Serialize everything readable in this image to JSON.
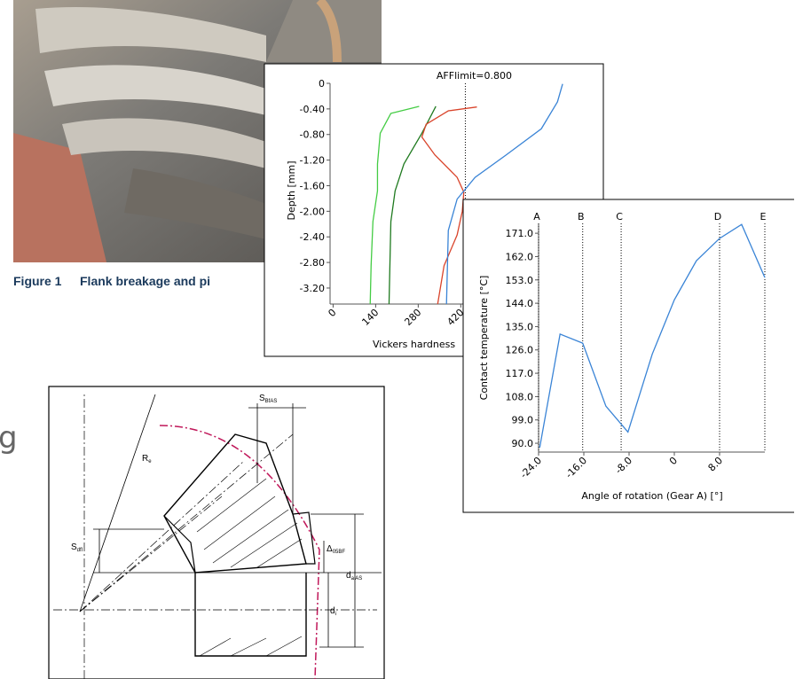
{
  "chart_data": [
    {
      "type": "line",
      "ylabel": "Depth [mm]",
      "xlabel": "Vickers hardness",
      "xlim": [
        -10,
        889
      ],
      "ylim": [
        -3.45,
        0
      ],
      "xticks": [
        0,
        140,
        280,
        420
      ],
      "yticks": [
        0,
        {
          "value": -0.4,
          "label": "-0.40"
        },
        {
          "value": -0.8,
          "label": "-0.80"
        },
        {
          "value": -1.2,
          "label": "-1.20"
        },
        {
          "value": -1.6,
          "label": "-1.60"
        },
        {
          "value": -2.0,
          "label": "-2.00"
        },
        {
          "value": -2.4,
          "label": "-2.40"
        },
        {
          "value": -2.8,
          "label": "-2.80"
        },
        {
          "value": -3.2,
          "label": "-3.20"
        }
      ],
      "ref_line": {
        "label": "AFFlimit=0.800",
        "x": 435
      },
      "series": [
        {
          "color": "#44cc44",
          "x": [
            283,
            190,
            155,
            146,
            146,
            131,
            125,
            122
          ],
          "values": [
            -0.36,
            -0.47,
            -0.78,
            -1.26,
            -1.68,
            -2.16,
            -2.85,
            -3.45
          ]
        },
        {
          "color": "#1f7a1f",
          "x": [
            338,
            292,
            233,
            204,
            190,
            184
          ],
          "values": [
            -0.36,
            -0.78,
            -1.26,
            -1.68,
            -2.16,
            -3.45
          ]
        },
        {
          "color": "#d9442b",
          "x": [
            473,
            379,
            306,
            292,
            335,
            408,
            430,
            425,
            408,
            365,
            344
          ],
          "values": [
            -0.37,
            -0.43,
            -0.64,
            -0.84,
            -1.12,
            -1.47,
            -1.7,
            -2.0,
            -2.37,
            -2.85,
            -3.45
          ]
        },
        {
          "color": "#3a84d6",
          "x": [
            755,
            738,
            685,
            569,
            467,
            408,
            379,
            373
          ],
          "values": [
            -0.01,
            -0.29,
            -0.71,
            -1.12,
            -1.47,
            -1.81,
            -2.3,
            -3.45
          ]
        }
      ]
    },
    {
      "type": "line",
      "ylabel": "Contact temperature [°C]",
      "xlabel": "Angle of rotation (Gear A) [°]",
      "xlim": [
        -24,
        16
      ],
      "ylim": [
        86.6,
        174.8
      ],
      "xticks": [
        {
          "value": -24,
          "label": "-24.0"
        },
        {
          "value": -16,
          "label": "-16.0"
        },
        {
          "value": -8,
          "label": "-8.0"
        },
        0,
        {
          "value": 8,
          "label": "8.0"
        }
      ],
      "yticks": [
        {
          "value": 90,
          "label": "90.0"
        },
        {
          "value": 99,
          "label": "99.0"
        },
        {
          "value": 108,
          "label": "108.0"
        },
        {
          "value": 117,
          "label": "117.0"
        },
        {
          "value": 126,
          "label": "126.0"
        },
        {
          "value": 135,
          "label": "135.0"
        },
        {
          "value": 144,
          "label": "144.0"
        },
        {
          "value": 153,
          "label": "153.0"
        },
        {
          "value": 162,
          "label": "162.0"
        },
        {
          "value": 171,
          "label": "171.0"
        }
      ],
      "markers": [
        {
          "label": "A",
          "x": -24
        },
        {
          "label": "B",
          "x": -16.2
        },
        {
          "label": "C",
          "x": -9.4
        },
        {
          "label": "D",
          "x": 8
        },
        {
          "label": "E",
          "x": 16
        }
      ],
      "series": [
        {
          "color": "#3a84d6",
          "x": [
            -23.8,
            -20.2,
            -16.2,
            -12.1,
            -8.2,
            -3.9,
            0,
            3.9,
            8,
            11.9,
            16
          ],
          "values": [
            88.3,
            132.1,
            128.6,
            104.3,
            94.3,
            124.4,
            145.3,
            160.4,
            169,
            174.4,
            153.9
          ]
        }
      ]
    }
  ],
  "figure_caption": {
    "number": "Figure 1",
    "text": "Flank breakage and pi"
  },
  "drawing": {
    "s_bfas": {
      "main": "S",
      "sub": "BfAS"
    },
    "r_e": {
      "main": "R",
      "sub": "e"
    },
    "s_dfl": {
      "main": "S",
      "sub": "dfl"
    },
    "delta": {
      "main": "Δ",
      "sub": "05BF"
    },
    "d_aas": {
      "main": "d",
      "sub": "a AS"
    },
    "d_i": {
      "main": "d",
      "sub": "i"
    }
  },
  "background_text": "g"
}
